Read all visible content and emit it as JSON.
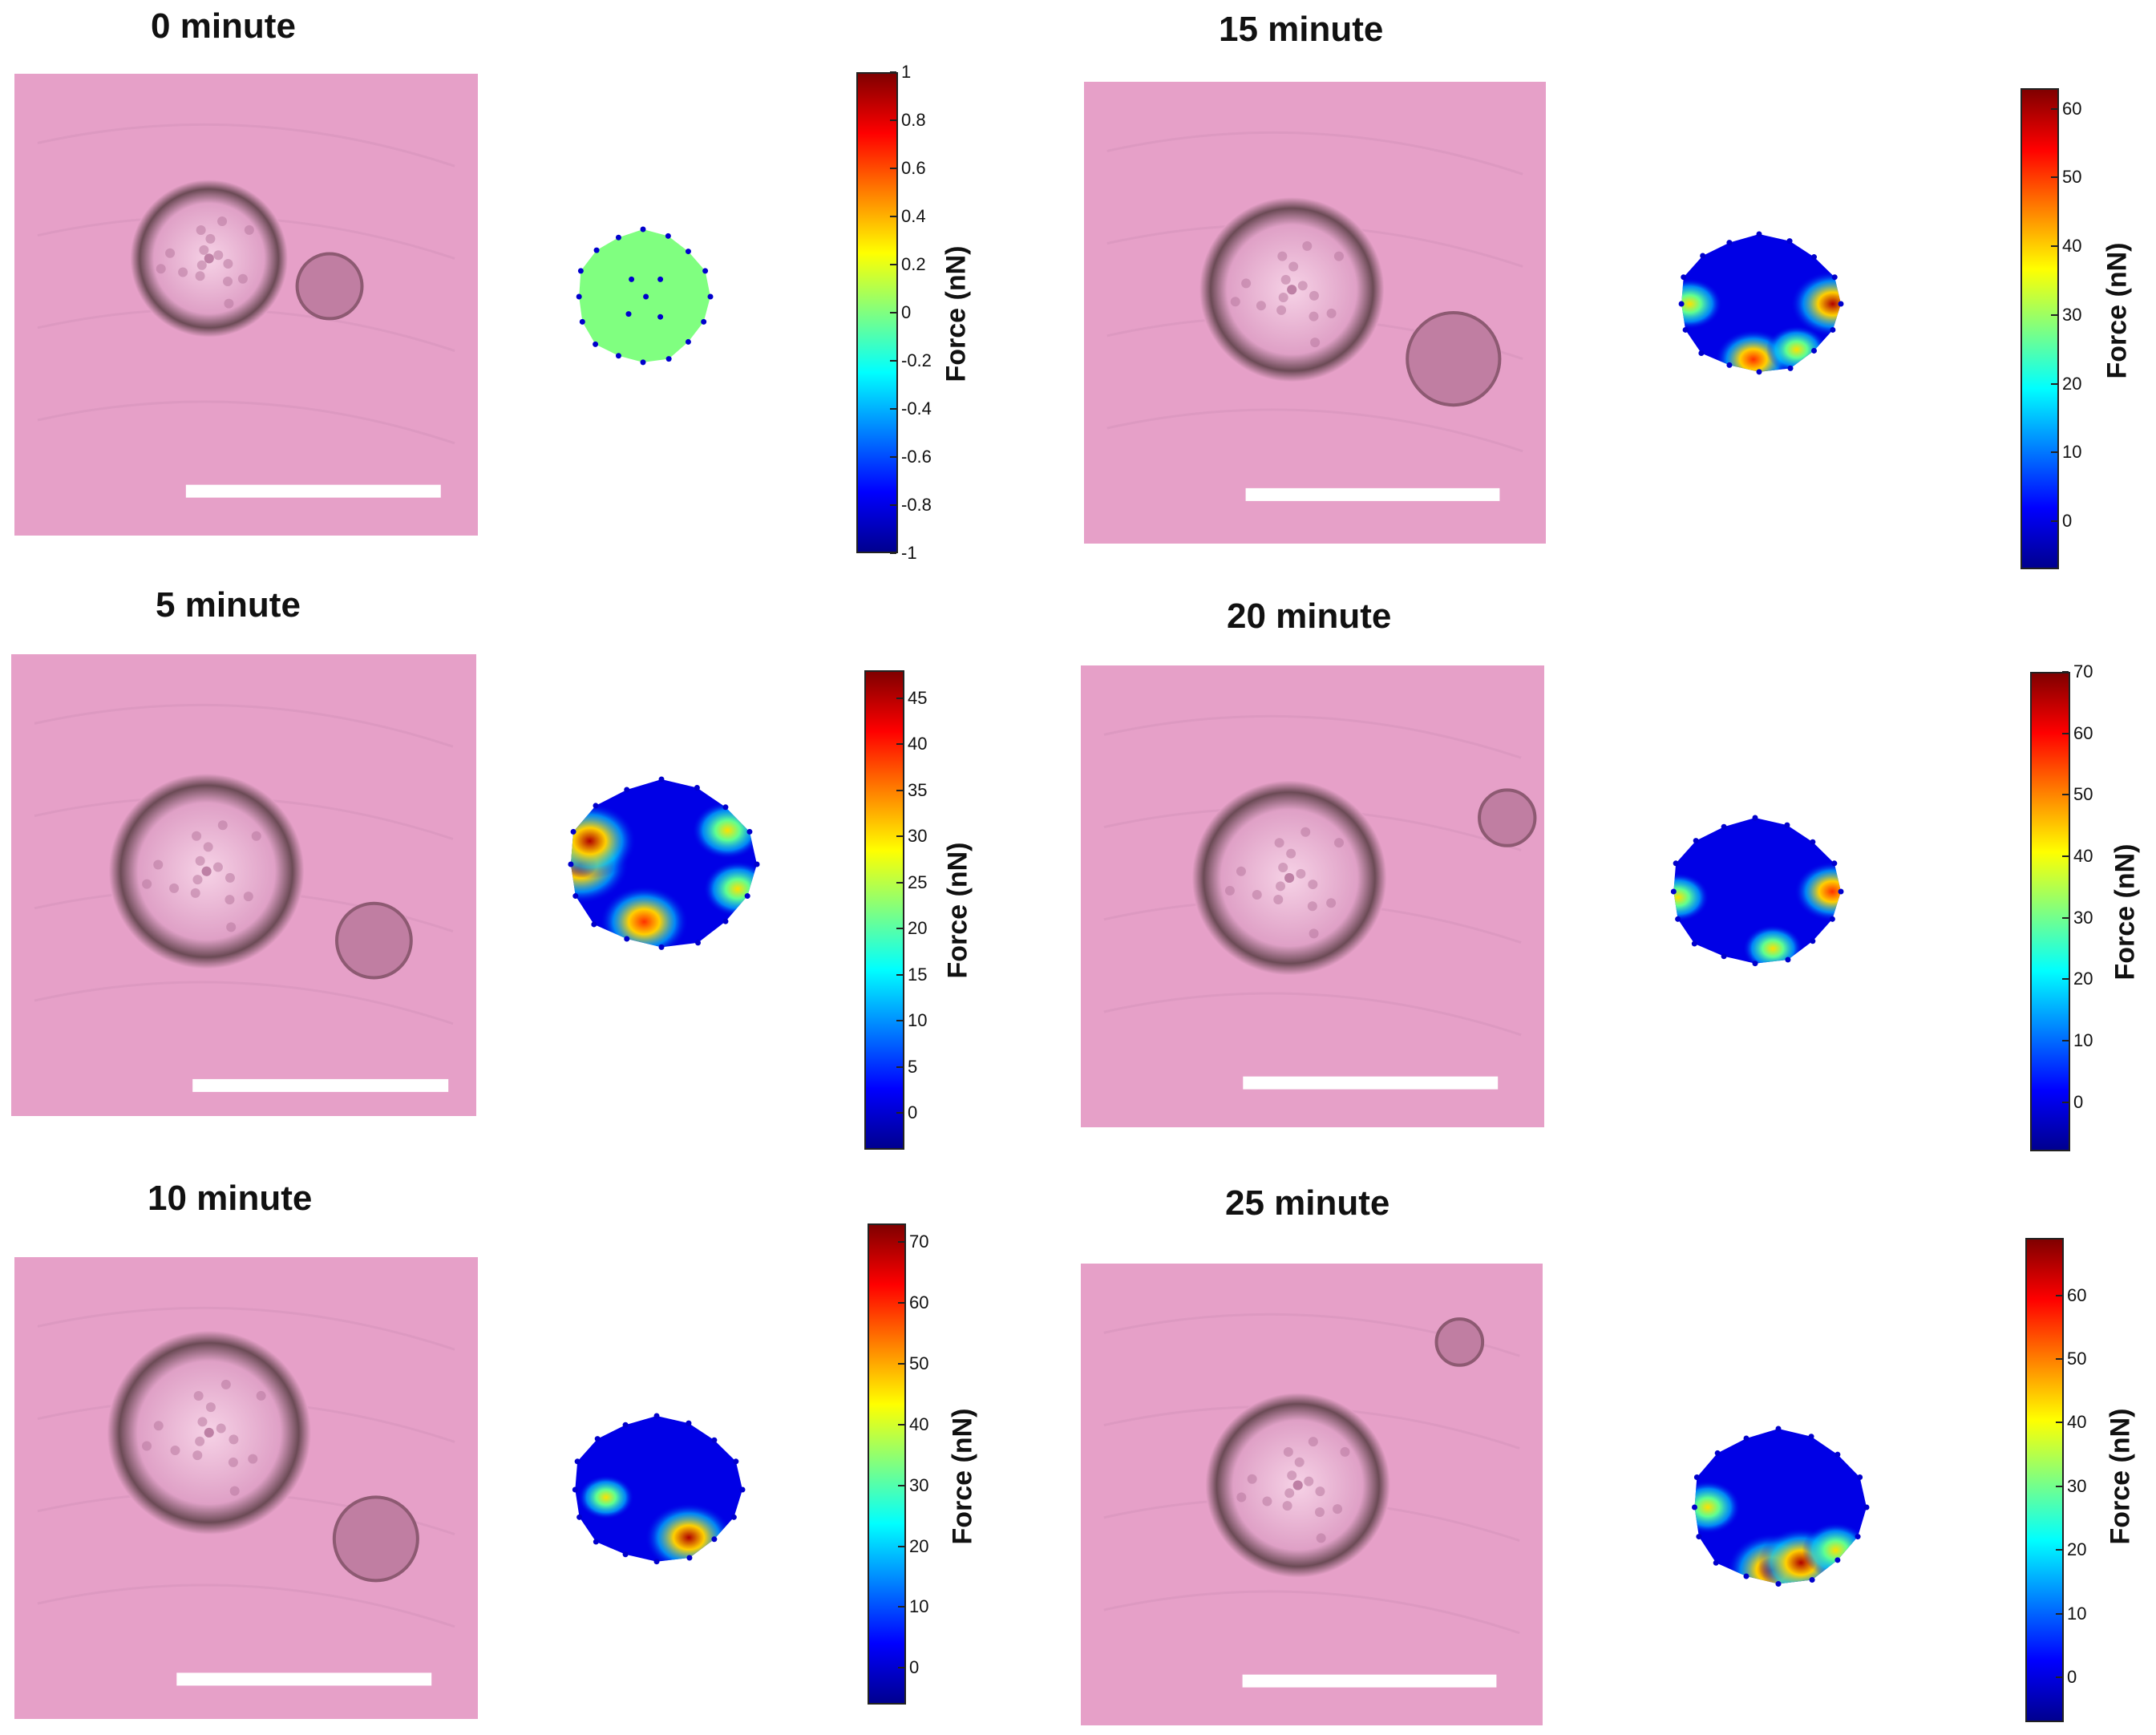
{
  "colors": {
    "tissue": "#e6a0c8",
    "cell_rim": "#6b4a55",
    "scale_bar": "#ffffff",
    "zero_fill": "#80ff80",
    "low_force": "#0000e6",
    "high_force": "#e00000",
    "boundary_point": "#0000cc"
  },
  "colorbar_label": "Force (nN)",
  "panels": [
    {
      "title": "0 minute",
      "ticks": [
        "1",
        "0.8",
        "0.6",
        "0.4",
        "0.2",
        "0",
        "-0.2",
        "-0.4",
        "-0.6",
        "-0.8",
        "-1"
      ],
      "tick_values": [
        1,
        0.8,
        0.6,
        0.4,
        0.2,
        0,
        -0.2,
        -0.4,
        -0.6,
        -0.8,
        -1
      ],
      "range": [
        -1,
        1
      ]
    },
    {
      "title": "5 minute",
      "ticks": [
        "45",
        "40",
        "35",
        "30",
        "25",
        "20",
        "15",
        "10",
        "5",
        "0"
      ],
      "tick_values": [
        45,
        40,
        35,
        30,
        25,
        20,
        15,
        10,
        5,
        0
      ],
      "range": [
        -4,
        48
      ]
    },
    {
      "title": "10 minute",
      "ticks": [
        "70",
        "60",
        "50",
        "40",
        "30",
        "20",
        "10",
        "0"
      ],
      "tick_values": [
        70,
        60,
        50,
        40,
        30,
        20,
        10,
        0
      ],
      "range": [
        -6,
        73
      ]
    },
    {
      "title": "15 minute",
      "ticks": [
        "60",
        "50",
        "40",
        "30",
        "20",
        "10",
        "0"
      ],
      "tick_values": [
        60,
        50,
        40,
        30,
        20,
        10,
        0
      ],
      "range": [
        -7,
        63
      ]
    },
    {
      "title": "20 minute",
      "ticks": [
        "70",
        "60",
        "50",
        "40",
        "30",
        "20",
        "10",
        "0"
      ],
      "tick_values": [
        70,
        60,
        50,
        40,
        30,
        20,
        10,
        0
      ],
      "range": [
        -8,
        70
      ]
    },
    {
      "title": "25 minute",
      "ticks": [
        "60",
        "50",
        "40",
        "30",
        "20",
        "10",
        "0"
      ],
      "tick_values": [
        60,
        50,
        40,
        30,
        20,
        10,
        0
      ],
      "range": [
        -7,
        69
      ]
    }
  ]
}
